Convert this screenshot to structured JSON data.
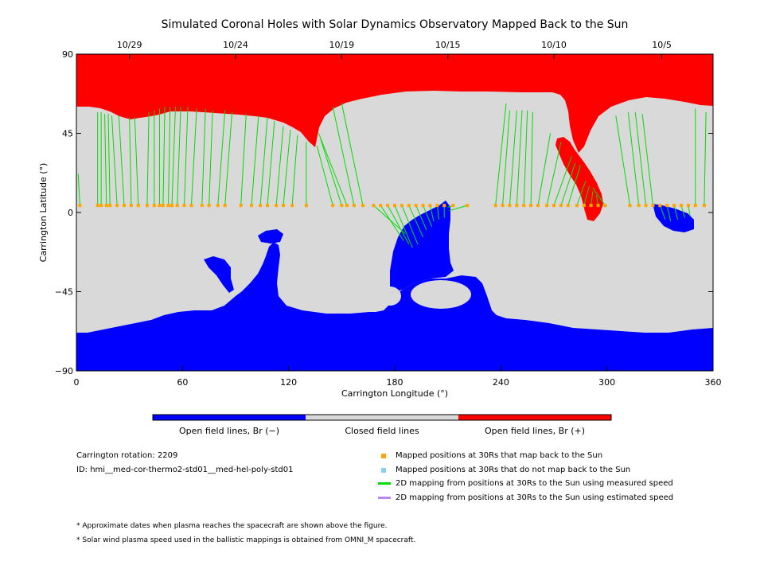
{
  "chart_data": {
    "type": "map",
    "title": "Simulated Coronal Holes with Solar Dynamics Observatory Mapped Back to the Sun",
    "xlabel": "Carrington Longitude (°)",
    "ylabel": "Carrington Latitude (°)",
    "xlim": [
      0,
      360
    ],
    "ylim": [
      -90,
      90
    ],
    "x_ticks": [
      0,
      60,
      120,
      180,
      240,
      300,
      360
    ],
    "y_ticks": [
      90,
      45,
      0,
      -45,
      -90
    ],
    "top_axis_dates": [
      {
        "label": "10/29",
        "lon": 30
      },
      {
        "label": "10/24",
        "lon": 90
      },
      {
        "label": "10/19",
        "lon": 150
      },
      {
        "label": "10/15",
        "lon": 210
      },
      {
        "label": "10/10",
        "lon": 270
      },
      {
        "label": "10/5",
        "lon": 331
      }
    ],
    "colors": {
      "open_negative": "#0000ff",
      "closed": "#d9d9d9",
      "open_positive": "#ff0000",
      "mapped_back": "#ffa500",
      "not_mapped": "#87cefa",
      "measured_speed": "#00dd00",
      "estimated_speed": "#bb88ee"
    },
    "colorbar_labels": [
      "Open field lines, Br (−)",
      "Closed field lines",
      "Open field lines, Br (+)"
    ],
    "mappings": [
      {
        "lon30": 2,
        "lat30": 4,
        "lonSun": 1,
        "latSun": 22
      },
      {
        "lon30": 12,
        "lat30": 4,
        "lonSun": 12,
        "latSun": 57
      },
      {
        "lon30": 14,
        "lat30": 4,
        "lonSun": 14,
        "latSun": 57
      },
      {
        "lon30": 17,
        "lat30": 4,
        "lonSun": 16,
        "latSun": 56
      },
      {
        "lon30": 19,
        "lat30": 4,
        "lonSun": 18,
        "latSun": 56
      },
      {
        "lon30": 23,
        "lat30": 4,
        "lonSun": 20,
        "latSun": 55
      },
      {
        "lon30": 27,
        "lat30": 4,
        "lonSun": 24,
        "latSun": 55
      },
      {
        "lon30": 31,
        "lat30": 4,
        "lonSun": 30,
        "latSun": 54
      },
      {
        "lon30": 35,
        "lat30": 4,
        "lonSun": 33,
        "latSun": 54
      },
      {
        "lon30": 40,
        "lat30": 4,
        "lonSun": 41,
        "latSun": 57
      },
      {
        "lon30": 44,
        "lat30": 4,
        "lonSun": 44,
        "latSun": 58
      },
      {
        "lon30": 47,
        "lat30": 4,
        "lonSun": 47,
        "latSun": 59
      },
      {
        "lon30": 49,
        "lat30": 4,
        "lonSun": 50,
        "latSun": 60
      },
      {
        "lon30": 52,
        "lat30": 4,
        "lonSun": 53,
        "latSun": 60
      },
      {
        "lon30": 54,
        "lat30": 4,
        "lonSun": 56,
        "latSun": 60
      },
      {
        "lon30": 57,
        "lat30": 4,
        "lonSun": 59,
        "latSun": 60
      },
      {
        "lon30": 61,
        "lat30": 4,
        "lonSun": 63,
        "latSun": 60
      },
      {
        "lon30": 65,
        "lat30": 4,
        "lonSun": 68,
        "latSun": 59
      },
      {
        "lon30": 71,
        "lat30": 4,
        "lonSun": 73,
        "latSun": 59
      },
      {
        "lon30": 75,
        "lat30": 4,
        "lonSun": 77,
        "latSun": 58
      },
      {
        "lon30": 80,
        "lat30": 4,
        "lonSun": 84,
        "latSun": 58
      },
      {
        "lon30": 84,
        "lat30": 4,
        "lonSun": 88,
        "latSun": 57
      },
      {
        "lon30": 93,
        "lat30": 4,
        "lonSun": 96,
        "latSun": 56
      },
      {
        "lon30": 99,
        "lat30": 4,
        "lonSun": 103,
        "latSun": 55
      },
      {
        "lon30": 104,
        "lat30": 4,
        "lonSun": 108,
        "latSun": 54
      },
      {
        "lon30": 108,
        "lat30": 4,
        "lonSun": 112,
        "latSun": 52
      },
      {
        "lon30": 113,
        "lat30": 4,
        "lonSun": 117,
        "latSun": 49
      },
      {
        "lon30": 117,
        "lat30": 4,
        "lonSun": 121,
        "latSun": 47
      },
      {
        "lon30": 122,
        "lat30": 4,
        "lonSun": 125,
        "latSun": 44
      },
      {
        "lon30": 130,
        "lat30": 4,
        "lonSun": 130,
        "latSun": 40
      },
      {
        "lon30": 145,
        "lat30": 4,
        "lonSun": 136,
        "latSun": 38
      },
      {
        "lon30": 150,
        "lat30": 4,
        "lonSun": 138,
        "latSun": 42
      },
      {
        "lon30": 153,
        "lat30": 4,
        "lonSun": 137,
        "latSun": 45
      },
      {
        "lon30": 157,
        "lat30": 4,
        "lonSun": 145,
        "latSun": 60
      },
      {
        "lon30": 162,
        "lat30": 4,
        "lonSun": 150,
        "latSun": 62
      },
      {
        "lon30": 168,
        "lat30": 4,
        "lonSun": 186,
        "latSun": -12
      },
      {
        "lon30": 172,
        "lat30": 4,
        "lonSun": 185,
        "latSun": -16
      },
      {
        "lon30": 176,
        "lat30": 4,
        "lonSun": 188,
        "latSun": -18
      },
      {
        "lon30": 180,
        "lat30": 4,
        "lonSun": 190,
        "latSun": -20
      },
      {
        "lon30": 184,
        "lat30": 4,
        "lonSun": 193,
        "latSun": -18
      },
      {
        "lon30": 188,
        "lat30": 4,
        "lonSun": 196,
        "latSun": -14
      },
      {
        "lon30": 192,
        "lat30": 4,
        "lonSun": 198,
        "latSun": -10
      },
      {
        "lon30": 196,
        "lat30": 4,
        "lonSun": 201,
        "latSun": -8
      },
      {
        "lon30": 200,
        "lat30": 4,
        "lonSun": 202,
        "latSun": -5
      },
      {
        "lon30": 204,
        "lat30": 4,
        "lonSun": 205,
        "latSun": -4
      },
      {
        "lon30": 208,
        "lat30": 4,
        "lonSun": 208,
        "latSun": -3
      },
      {
        "lon30": 213,
        "lat30": 4,
        "lonSun": 210,
        "latSun": 3
      },
      {
        "lon30": 221,
        "lat30": 4,
        "lonSun": 211,
        "latSun": 1
      },
      {
        "lon30": 237,
        "lat30": 4,
        "lonSun": 243,
        "latSun": 62
      },
      {
        "lon30": 241,
        "lat30": 4,
        "lonSun": 245,
        "latSun": 58
      },
      {
        "lon30": 245,
        "lat30": 4,
        "lonSun": 249,
        "latSun": 58
      },
      {
        "lon30": 249,
        "lat30": 4,
        "lonSun": 252,
        "latSun": 58
      },
      {
        "lon30": 253,
        "lat30": 4,
        "lonSun": 255,
        "latSun": 58
      },
      {
        "lon30": 257,
        "lat30": 4,
        "lonSun": 258,
        "latSun": 57
      },
      {
        "lon30": 261,
        "lat30": 4,
        "lonSun": 268,
        "latSun": 45
      },
      {
        "lon30": 266,
        "lat30": 4,
        "lonSun": 274,
        "latSun": 40
      },
      {
        "lon30": 270,
        "lat30": 4,
        "lonSun": 280,
        "latSun": 32
      },
      {
        "lon30": 274,
        "lat30": 4,
        "lonSun": 282,
        "latSun": 28
      },
      {
        "lon30": 278,
        "lat30": 4,
        "lonSun": 285,
        "latSun": 27
      },
      {
        "lon30": 283,
        "lat30": 4,
        "lonSun": 288,
        "latSun": 18
      },
      {
        "lon30": 287,
        "lat30": 4,
        "lonSun": 290,
        "latSun": 15
      },
      {
        "lon30": 291,
        "lat30": 4,
        "lonSun": 292,
        "latSun": 12
      },
      {
        "lon30": 295,
        "lat30": 4,
        "lonSun": 294,
        "latSun": 10
      },
      {
        "lon30": 299,
        "lat30": 4,
        "lonSun": 292,
        "latSun": 14
      },
      {
        "lon30": 313,
        "lat30": 4,
        "lonSun": 305,
        "latSun": 55
      },
      {
        "lon30": 318,
        "lat30": 4,
        "lonSun": 312,
        "latSun": 57
      },
      {
        "lon30": 322,
        "lat30": 4,
        "lonSun": 316,
        "latSun": 57
      },
      {
        "lon30": 326,
        "lat30": 4,
        "lonSun": 320,
        "latSun": 56
      },
      {
        "lon30": 330,
        "lat30": 4,
        "lonSun": 333,
        "latSun": -4
      },
      {
        "lon30": 334,
        "lat30": 4,
        "lonSun": 336,
        "latSun": -5
      },
      {
        "lon30": 338,
        "lat30": 4,
        "lonSun": 340,
        "latSun": -4
      },
      {
        "lon30": 342,
        "lat30": 4,
        "lonSun": 344,
        "latSun": -3
      },
      {
        "lon30": 346,
        "lat30": 4,
        "lonSun": 347,
        "latSun": -2
      },
      {
        "lon30": 350,
        "lat30": 4,
        "lonSun": 350,
        "latSun": 59
      },
      {
        "lon30": 355,
        "lat30": 4,
        "lonSun": 356,
        "latSun": 57
      }
    ]
  },
  "info": {
    "carrington_rotation": "Carrington rotation: 2209",
    "model_id": "ID: hmi__med-cor-thermo2-std01__med-hel-poly-std01"
  },
  "legend": {
    "mapped_back": "Mapped positions at 30Rs that map back to the Sun",
    "not_mapped": "Mapped positions at 30Rs that do not map back to the Sun",
    "measured": "2D mapping from positions at 30Rs to the Sun using measured speed",
    "estimated": "2D mapping from positions at 30Rs to the Sun using estimated speed"
  },
  "footnotes": [
    "* Approximate dates when plasma reaches the spacecraft are shown above the figure.",
    "* Solar wind plasma speed used in the ballistic mappings is obtained from OMNI_M spacecraft."
  ]
}
